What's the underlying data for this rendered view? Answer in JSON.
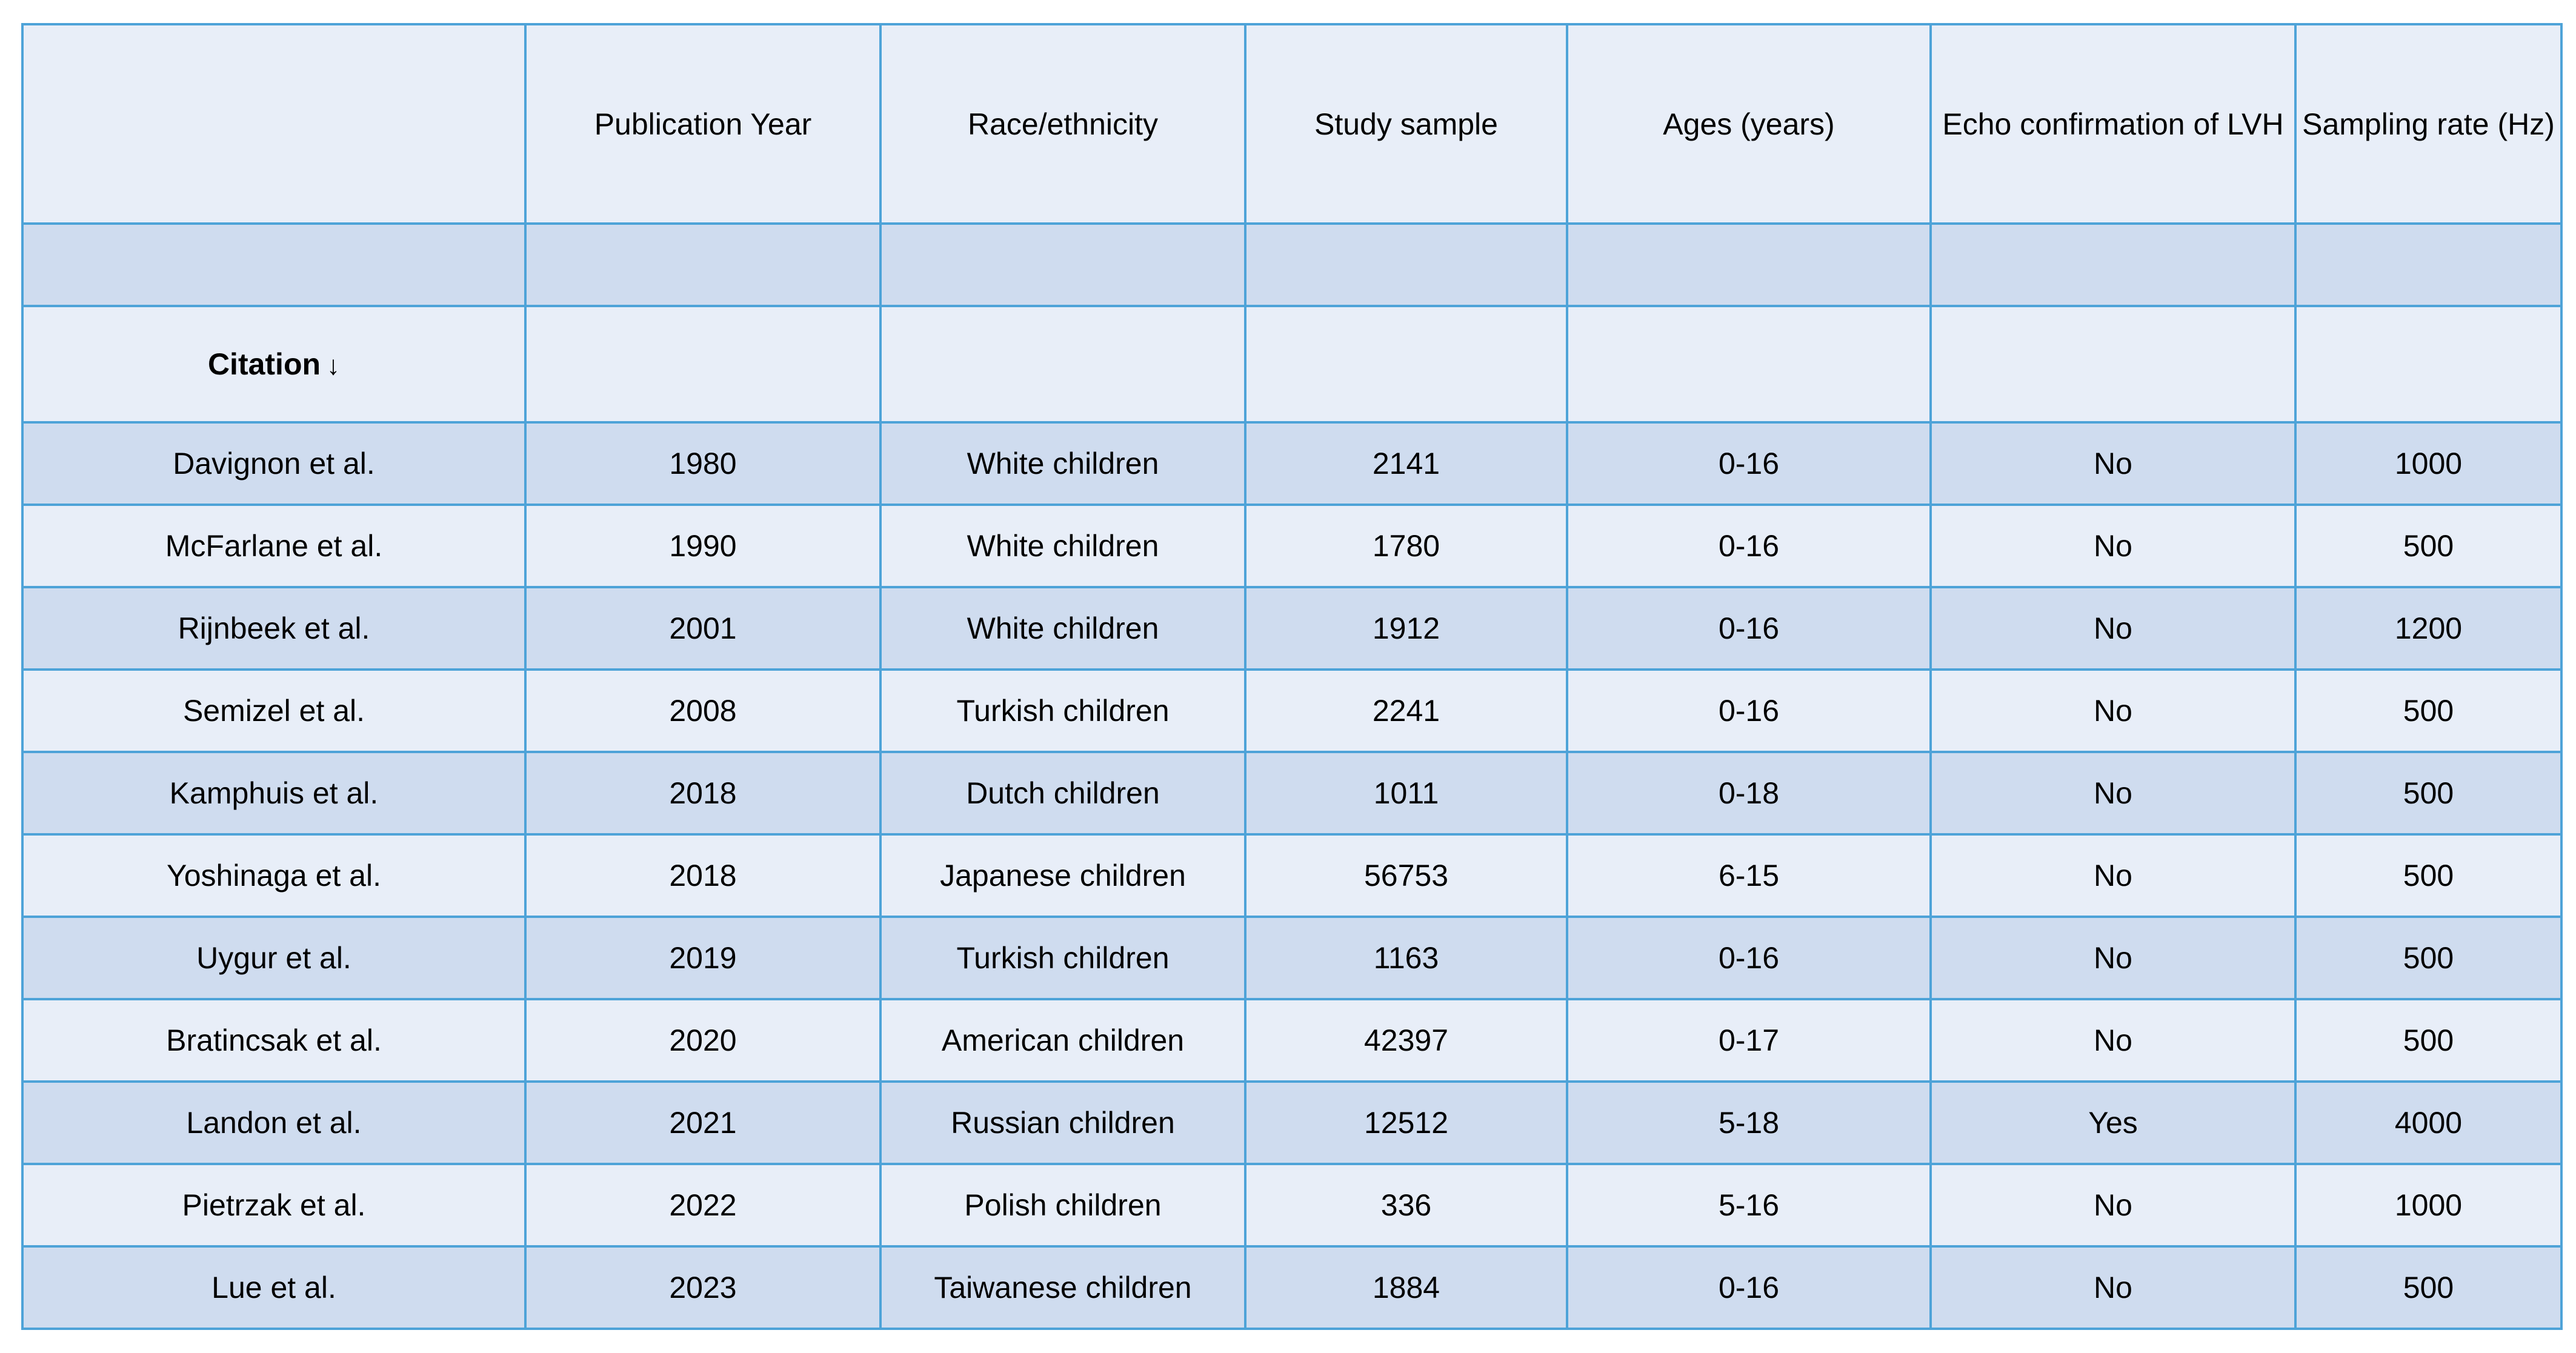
{
  "columns": [
    "",
    "Publication Year",
    "Race/ethnicity",
    "Study sample",
    "Ages (years)",
    "Echo confirmation of LVH",
    "Sampling rate (Hz)"
  ],
  "citation_header": {
    "label": "Citation",
    "sort_icon": "↓"
  },
  "rows": [
    [
      "Davignon et al.",
      "1980",
      "White children",
      "2141",
      "0-16",
      "No",
      "1000"
    ],
    [
      "McFarlane et al.",
      "1990",
      "White children",
      "1780",
      "0-16",
      "No",
      "500"
    ],
    [
      "Rijnbeek et al.",
      "2001",
      "White children",
      "1912",
      "0-16",
      "No",
      "1200"
    ],
    [
      "Semizel et al.",
      "2008",
      "Turkish children",
      "2241",
      "0-16",
      "No",
      "500"
    ],
    [
      "Kamphuis et al.",
      "2018",
      "Dutch children",
      "1011",
      "0-18",
      "No",
      "500"
    ],
    [
      "Yoshinaga et al.",
      "2018",
      "Japanese children",
      "56753",
      "6-15",
      "No",
      "500"
    ],
    [
      "Uygur et al.",
      "2019",
      "Turkish children",
      "1163",
      "0-16",
      "No",
      "500"
    ],
    [
      "Bratincsak et al.",
      "2020",
      "American children",
      "42397",
      "0-17",
      "No",
      "500"
    ],
    [
      "Landon et al.",
      "2021",
      "Russian children",
      "12512",
      "5-18",
      "Yes",
      "4000"
    ],
    [
      "Pietrzak et al.",
      "2022",
      "Polish children",
      "336",
      "5-16",
      "No",
      "1000"
    ],
    [
      "Lue et al.",
      "2023",
      "Taiwanese children",
      "1884",
      "0-16",
      "No",
      "500"
    ]
  ],
  "colors": {
    "border": "#4ea3d8",
    "row_light": "#e8eef8",
    "row_dark": "#cfdcef"
  }
}
